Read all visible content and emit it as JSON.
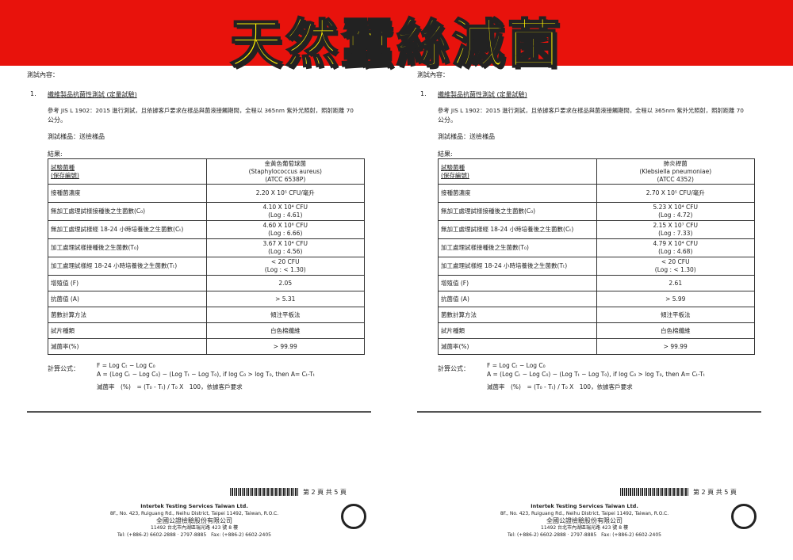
{
  "banner": {
    "title": "天然蠶絲滅菌"
  },
  "pages": [
    {
      "section_label": "測試內容：",
      "item_no": "1.",
      "item_title": "纖維製品抗菌性測試 (定量試驗)",
      "method": "參考 JIS L 1902：2015 進行測試，且依據客戶要求在樣品與菌液接觸期間，全程以 365nm 紫外光照射，照射距離 70",
      "method2": "公分。",
      "sample": "測試樣品：送檢樣品",
      "results_label": "結果:",
      "rows": [
        {
          "label": "試驗菌種\n(保存編號)",
          "value": "金黃色葡萄球菌\n(Staphylococcus aureus)\n(ATCC 6538P)"
        },
        {
          "label": "接種菌濃度",
          "value": "2.20 X 10⁵ CFU/毫升"
        },
        {
          "label": "無加工處理試樣接種後之生菌數(C₀)",
          "value": "4.10 X 10⁴ CFU\n(Log : 4.61)"
        },
        {
          "label": "無加工處理試樣經 18-24 小時培養後之生菌數(Cₜ)",
          "value": "4.60 X 10⁶ CFU\n(Log : 6.66)"
        },
        {
          "label": "加工處理試樣接種後之生菌數(T₀)",
          "value": "3.67 X 10⁴ CFU\n(Log : 4.56)"
        },
        {
          "label": "加工處理試樣經 18-24 小時培養後之生菌數(Tₜ)",
          "value": "< 20 CFU\n(Log : < 1.30)"
        },
        {
          "label": "增殖值 (F)",
          "value": "2.05"
        },
        {
          "label": "抗菌值 (A)",
          "value": "> 5.31"
        },
        {
          "label": "菌數計算方法",
          "value": "傾注平板法"
        },
        {
          "label": "試片種類",
          "value": "白色棉纖維"
        },
        {
          "label": "滅菌率(%)",
          "value": "> 99.99"
        }
      ],
      "formula_label": "計算公式：",
      "formula1": "F = Log Cₜ − Log C₀",
      "formula2": "A = (Log Cₜ − Log C₀) − (Log Tₜ − Log T₀), if log C₀ > log T₀, then A= Cₜ-Tₜ",
      "formula3": "滅菌率　(%)　= (T₀ - Tₜ) / T₀ X　100，依據客戶要求",
      "page_no": "第 2 頁 共 5 頁",
      "company_en": "Intertek Testing Services Taiwan Ltd.",
      "address_en": "8F., No. 423, Ruiguang Rd., Neihu District, Taipei 11492, Taiwan, R.O.C.",
      "company_zh": "全國公證檢驗股份有限公司",
      "address_zh": "11492 台北市內湖區瑞光路 423 號 8 樓",
      "tel": "Tel: (+886-2) 6602-2888 · 2797-8885　Fax: (+886-2) 6602-2405",
      "logo": "in"
    },
    {
      "section_label": "測試內容：",
      "item_no": "1.",
      "item_title": "纖維製品抗菌性測試 (定量試驗)",
      "method": "參考 JIS L 1902：2015 進行測試，且依據客戶要求在樣品與菌液接觸期間，全程以 365nm 紫外光照射，照射距離 70",
      "method2": "公分。",
      "sample": "測試樣品：送檢樣品",
      "results_label": "結果:",
      "rows": [
        {
          "label": "試驗菌種\n(保存編號)",
          "value": "肺炎桿菌\n(Klebsiella pneumoniae)\n(ATCC 4352)"
        },
        {
          "label": "接種菌濃度",
          "value": "2.70 X 10⁵ CFU/毫升"
        },
        {
          "label": "無加工處理試樣接種後之生菌數(C₀)",
          "value": "5.23 X 10⁴ CFU\n(Log : 4.72)"
        },
        {
          "label": "無加工處理試樣經 18-24 小時培養後之生菌數(Cₜ)",
          "value": "2.15 X 10⁷ CFU\n(Log : 7.33)"
        },
        {
          "label": "加工處理試樣接種後之生菌數(T₀)",
          "value": "4.79 X 10⁴ CFU\n(Log : 4.68)"
        },
        {
          "label": "加工處理試樣經 18-24 小時培養後之生菌數(Tₜ)",
          "value": "< 20 CFU\n(Log : < 1.30)"
        },
        {
          "label": "增殖值 (F)",
          "value": "2.61"
        },
        {
          "label": "抗菌值 (A)",
          "value": "> 5.99"
        },
        {
          "label": "菌數計算方法",
          "value": "傾注平板法"
        },
        {
          "label": "試片種類",
          "value": "白色棉纖維"
        },
        {
          "label": "滅菌率(%)",
          "value": "> 99.99"
        }
      ],
      "formula_label": "計算公式：",
      "formula1": "F = Log Cₜ − Log C₀",
      "formula2": "A = (Log Cₜ − Log C₀) − (Log Tₜ − Log T₀), if log C₀ > log T₀, then A= Cₜ-Tₜ",
      "formula3": "滅菌率　(%)　= (T₀ - Tₜ) / T₀ X　100，依據客戶要求",
      "page_no": "第 2 頁 共 5 頁",
      "company_en": "Intertek Testing Services Taiwan Ltd.",
      "address_en": "8F., No. 423, Ruiguang Rd., Neihu District, Taipei 11492, Taiwan, R.O.C.",
      "company_zh": "全國公證檢驗股份有限公司",
      "address_zh": "11492 台北市內湖區瑞光路 423 號 8 樓",
      "tel": "Tel: (+886-2) 6602-2888 · 2797-8885　Fax: (+886-2) 6602-2405",
      "logo": "in"
    }
  ]
}
